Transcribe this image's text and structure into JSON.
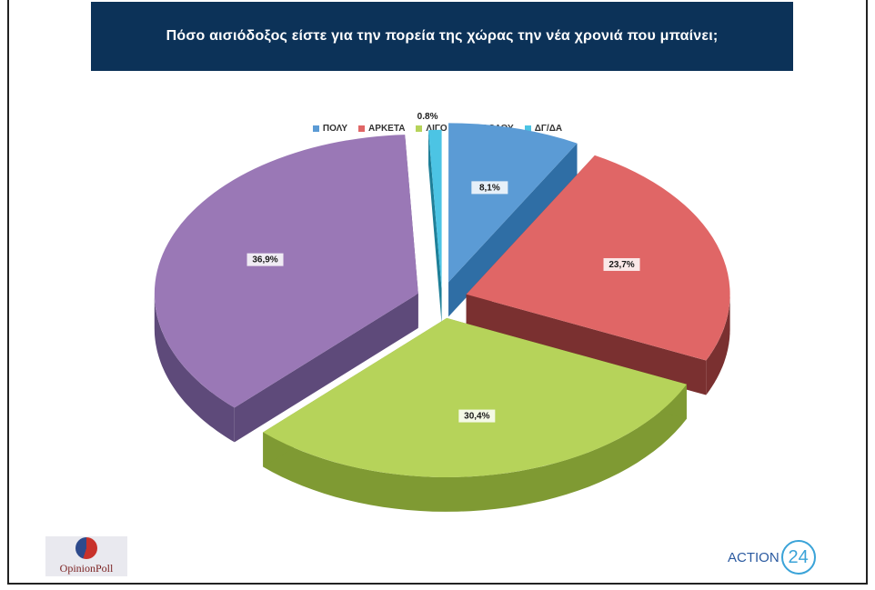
{
  "title": "Πόσο αισιόδοξος είστε για την πορεία της χώρας την νέα χρονιά που μπαίνει;",
  "chart_data": {
    "type": "pie",
    "three_d": true,
    "exploded": true,
    "legend_position": "top",
    "series": [
      {
        "name": "ΠΟΛΥ",
        "value": 8.1,
        "label": "8,1%",
        "color": "#5b9bd5",
        "side_color": "#2f6ea5"
      },
      {
        "name": "ΑΡΚΕΤΑ",
        "value": 23.7,
        "label": "23,7%",
        "color": "#e06666",
        "side_color": "#7a3030"
      },
      {
        "name": "ΛΙΓΟ",
        "value": 30.4,
        "label": "30,4%",
        "color": "#b6d35a",
        "side_color": "#7f9a33"
      },
      {
        "name": "ΚΑΘΟΛΟΥ",
        "value": 36.9,
        "label": "36,9%",
        "color": "#9a78b6",
        "side_color": "#5e4a7a"
      },
      {
        "name": "ΔΓ/ΔΑ",
        "value": 0.8,
        "label": "0.8%",
        "color": "#4cc4e4",
        "side_color": "#1e7f98"
      }
    ]
  },
  "logos": {
    "left": "OpinionPoll",
    "right_text": "ACTION",
    "right_number": "24"
  }
}
